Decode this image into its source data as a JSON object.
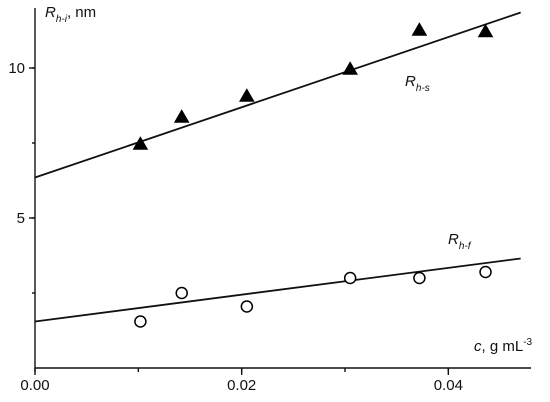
{
  "chart_data": {
    "type": "scatter",
    "title": "",
    "xlabel": {
      "var": "c",
      "rest": ", g mL",
      "sup": "-3"
    },
    "ylabel": {
      "var": "R",
      "sub": "h-i",
      "rest": ", nm"
    },
    "xlim": [
      0.0,
      0.048
    ],
    "ylim": [
      0.0,
      12.0
    ],
    "x_ticks": [
      0.0,
      0.02,
      0.04
    ],
    "x_tick_labels": [
      "0.00",
      "0.02",
      "0.04"
    ],
    "y_ticks": [
      5,
      10
    ],
    "y_tick_labels": [
      "5",
      "10"
    ],
    "grid": false,
    "series": [
      {
        "name": "R_h-s",
        "label_var": "R",
        "label_sub": "h-s",
        "marker": "filled-triangle",
        "x": [
          0.0102,
          0.0142,
          0.0205,
          0.0305,
          0.0372,
          0.0436
        ],
        "y": [
          7.45,
          8.35,
          9.05,
          9.95,
          11.25,
          11.2
        ],
        "fit": {
          "x": [
            0.0,
            0.047
          ],
          "y": [
            6.35,
            11.85
          ]
        }
      },
      {
        "name": "R_h-f",
        "label_var": "R",
        "label_sub": "h-f",
        "marker": "open-circle",
        "x": [
          0.0102,
          0.0142,
          0.0205,
          0.0305,
          0.0372,
          0.0436
        ],
        "y": [
          1.55,
          2.5,
          2.05,
          3.0,
          3.0,
          3.2
        ],
        "fit": {
          "x": [
            0.0,
            0.047
          ],
          "y": [
            1.55,
            3.65
          ]
        }
      }
    ]
  }
}
